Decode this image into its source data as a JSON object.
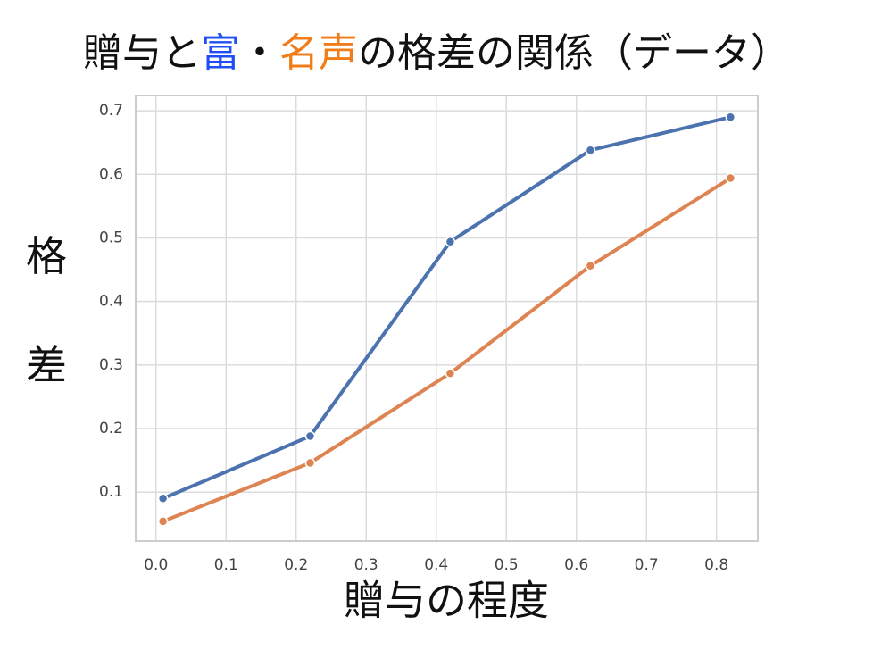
{
  "chart_data": {
    "type": "line",
    "title": [
      {
        "text": "贈与と",
        "color": "#111111"
      },
      {
        "text": "富",
        "color": "#1f4ef5"
      },
      {
        "text": "・",
        "color": "#111111"
      },
      {
        "text": "名声",
        "color": "#f07d1a"
      },
      {
        "text": "の格差の関係（データ）",
        "color": "#111111"
      }
    ],
    "xlabel": "贈与の程度",
    "ylabel": "格差",
    "x": [
      0.01,
      0.22,
      0.42,
      0.62,
      0.82
    ],
    "series": [
      {
        "color": "#4c72b0",
        "values": [
          0.09,
          0.188,
          0.494,
          0.638,
          0.69
        ]
      },
      {
        "color": "#dd8452",
        "values": [
          0.054,
          0.146,
          0.287,
          0.456,
          0.594
        ]
      }
    ],
    "xlim": [
      -0.029,
      0.859
    ],
    "ylim": [
      0.023,
      0.724
    ],
    "xticks": [
      {
        "value": 0,
        "label": "0.0"
      },
      0.1,
      0.2,
      0.3,
      0.4,
      0.5,
      0.6,
      0.7,
      0.8
    ],
    "yticks": [
      0.1,
      0.2,
      0.3,
      0.4,
      0.5,
      0.6,
      0.7
    ],
    "grid": true
  }
}
